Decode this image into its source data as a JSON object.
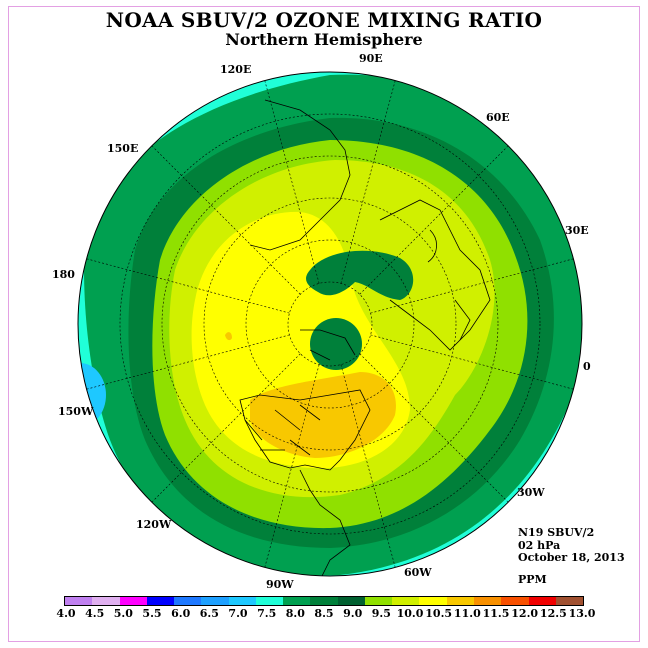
{
  "title": "NOAA SBUV/2 OZONE MIXING RATIO",
  "subtitle": "Northern Hemisphere",
  "info": {
    "satellite": "N19 SBUV/2",
    "level": "02 hPa",
    "date": "October 18, 2013",
    "units": "PPM"
  },
  "longitude_labels": [
    "90E",
    "60E",
    "30E",
    "0",
    "30W",
    "60W",
    "90W",
    "120W",
    "150W",
    "180",
    "150E",
    "120E"
  ],
  "colorbar": {
    "ticks": [
      "4.0",
      "4.5",
      "5.0",
      "5.5",
      "6.0",
      "6.5",
      "7.0",
      "7.5",
      "8.0",
      "8.5",
      "9.0",
      "9.5",
      "10.0",
      "10.5",
      "11.0",
      "11.5",
      "12.0",
      "12.5",
      "13.0"
    ],
    "colors": [
      "#c080f0",
      "#e0b0f0",
      "#ff00ff",
      "#0000ff",
      "#1e78ff",
      "#1ea0ff",
      "#1ec8ff",
      "#20ffd8",
      "#00a050",
      "#00803a",
      "#006030",
      "#90e000",
      "#d0f000",
      "#ffff00",
      "#f8c800",
      "#f89000",
      "#f85000",
      "#f00000",
      "#a05030"
    ]
  },
  "colors": {
    "band_8_0": "#20ffd8",
    "band_8_5": "#00a050",
    "band_9_0": "#00803a",
    "band_9_5": "#90e000",
    "band_10_0": "#d0f000",
    "band_10_5": "#ffff00",
    "band_11_0": "#f8c800",
    "band_7_5": "#1ec8ff"
  }
}
